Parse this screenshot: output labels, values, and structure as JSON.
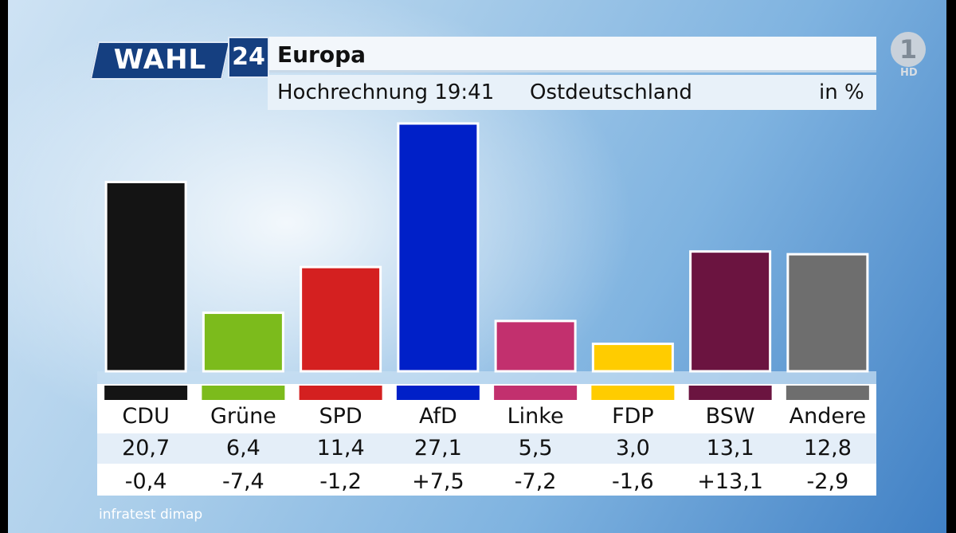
{
  "header": {
    "logo_word": "WAHL",
    "logo_number": "24",
    "title": "Europa",
    "subtitle_time": "Hochrechnung 19:41",
    "subtitle_region": "Ostdeutschland",
    "subtitle_unit": "in %"
  },
  "broadcaster": {
    "logo": "ARD-1-icon",
    "logo_text": "1",
    "badge": "HD"
  },
  "source": "infratest dimap",
  "chart_data": {
    "type": "bar",
    "categories": [
      "CDU",
      "Grüne",
      "SPD",
      "AfD",
      "Linke",
      "FDP",
      "BSW",
      "Andere"
    ],
    "values": [
      20.7,
      6.4,
      11.4,
      27.1,
      5.5,
      3.0,
      13.1,
      12.8
    ],
    "value_labels": [
      "20,7",
      "6,4",
      "11,4",
      "27,1",
      "5,5",
      "3,0",
      "13,1",
      "12,8"
    ],
    "changes": [
      "-0,4",
      "-7,4",
      "-1,2",
      "+7,5",
      "-7,2",
      "-1,6",
      "+13,1",
      "-2,9"
    ],
    "colors": [
      "#141414",
      "#7cbb1c",
      "#d42020",
      "#0020c8",
      "#c2306e",
      "#ffcc00",
      "#6b1440",
      "#6e6e6e"
    ],
    "title": "Europa",
    "subtitle": "Hochrechnung 19:41 Ostdeutschland",
    "ylabel": "in %",
    "ylim": [
      0,
      27.1
    ],
    "grid": false,
    "legend": "none"
  }
}
